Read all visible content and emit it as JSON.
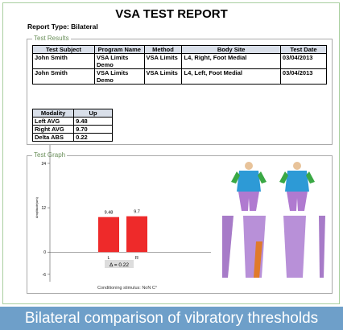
{
  "header": {
    "title": "VSA TEST REPORT",
    "report_type": "Report Type: Bilateral"
  },
  "results": {
    "legend": "Test Results",
    "columns": [
      "Test Subject",
      "Program Name",
      "Method",
      "Body Site",
      "Test Date"
    ],
    "rows": [
      [
        "John Smith",
        "VSA Limits Demo",
        "VSA Limits",
        "L4, Right, Foot Medial",
        "03/04/2013"
      ],
      [
        "John Smith",
        "VSA Limits Demo",
        "VSA Limits",
        "L4, Left, Foot Medial",
        "03/04/2013"
      ]
    ]
  },
  "modality": {
    "columns": [
      "Modality",
      "Up"
    ],
    "rows": [
      [
        "Left AVG",
        "9.48"
      ],
      [
        "Right AVG",
        "9.70"
      ],
      [
        "Delta ABS",
        "0.22"
      ]
    ]
  },
  "graph": {
    "legend": "Test Graph",
    "chart_data": {
      "type": "bar",
      "y_label": "Amplitude(um)",
      "categories": [
        "L",
        "R"
      ],
      "values": [
        9.48,
        9.7
      ],
      "color": "#ee2a2a",
      "ylim": [
        -8,
        29
      ],
      "yticks": [
        -6,
        0,
        12,
        24
      ],
      "annotation": "Δ = 0.22",
      "footnote": "Conditioning stimulus: NoN C°"
    }
  },
  "caption": "Bilateral comparison of vibratory thresholds"
}
